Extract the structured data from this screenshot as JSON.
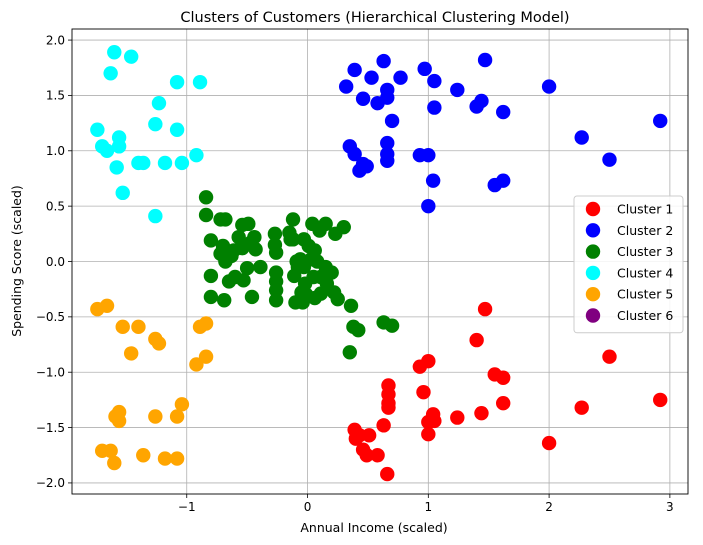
{
  "chart_data": {
    "type": "scatter",
    "title": "Clusters of Customers (Hierarchical Clustering Model)",
    "xlabel": "Annual Income (scaled)",
    "ylabel": "Spending Score (scaled)",
    "xlim": [
      -1.95,
      3.15
    ],
    "ylim": [
      -2.1,
      2.1
    ],
    "xticks": [
      -1,
      0,
      1,
      2,
      3
    ],
    "xtick_labels": [
      "−1",
      "0",
      "1",
      "2",
      "3"
    ],
    "yticks": [
      -2.0,
      -1.5,
      -1.0,
      -0.5,
      0.0,
      0.5,
      1.0,
      1.5,
      2.0
    ],
    "ytick_labels": [
      "−2.0",
      "−1.5",
      "−1.0",
      "−0.5",
      "0.0",
      "0.5",
      "1.0",
      "1.5",
      "2.0"
    ],
    "grid": true,
    "legend_position": "center-right",
    "series": [
      {
        "name": "Cluster 1",
        "color": "#ff0000",
        "points": [
          [
            0.39,
            -1.52
          ],
          [
            0.4,
            -1.6
          ],
          [
            0.43,
            -1.57
          ],
          [
            0.46,
            -1.7
          ],
          [
            0.49,
            -1.75
          ],
          [
            0.51,
            -1.57
          ],
          [
            0.58,
            -1.75
          ],
          [
            0.63,
            -1.48
          ],
          [
            0.66,
            -1.92
          ],
          [
            0.67,
            -1.12
          ],
          [
            0.67,
            -1.2
          ],
          [
            0.67,
            -1.28
          ],
          [
            0.67,
            -1.32
          ],
          [
            0.93,
            -0.95
          ],
          [
            0.96,
            -1.18
          ],
          [
            1.0,
            -0.9
          ],
          [
            1.0,
            -1.45
          ],
          [
            1.0,
            -1.56
          ],
          [
            1.04,
            -1.38
          ],
          [
            1.05,
            -1.44
          ],
          [
            1.24,
            -1.41
          ],
          [
            1.4,
            -0.71
          ],
          [
            1.44,
            -1.37
          ],
          [
            1.47,
            -0.43
          ],
          [
            1.55,
            -1.02
          ],
          [
            1.62,
            -1.05
          ],
          [
            1.62,
            -1.28
          ],
          [
            2.0,
            -1.64
          ],
          [
            2.27,
            -1.32
          ],
          [
            2.5,
            -0.86
          ],
          [
            2.92,
            -1.25
          ]
        ]
      },
      {
        "name": "Cluster 2",
        "color": "#0000ff",
        "points": [
          [
            0.32,
            1.58
          ],
          [
            0.35,
            1.04
          ],
          [
            0.39,
            1.73
          ],
          [
            0.39,
            0.97
          ],
          [
            0.43,
            0.82
          ],
          [
            0.46,
            1.47
          ],
          [
            0.46,
            0.88
          ],
          [
            0.49,
            0.86
          ],
          [
            0.53,
            1.66
          ],
          [
            0.58,
            1.43
          ],
          [
            0.63,
            1.81
          ],
          [
            0.66,
            1.48
          ],
          [
            0.66,
            1.55
          ],
          [
            0.66,
            1.07
          ],
          [
            0.66,
            0.97
          ],
          [
            0.66,
            0.91
          ],
          [
            0.7,
            1.27
          ],
          [
            0.77,
            1.66
          ],
          [
            0.93,
            0.96
          ],
          [
            0.97,
            1.74
          ],
          [
            1.0,
            0.96
          ],
          [
            1.0,
            0.5
          ],
          [
            1.04,
            0.73
          ],
          [
            1.05,
            1.63
          ],
          [
            1.05,
            1.39
          ],
          [
            1.24,
            1.55
          ],
          [
            1.4,
            1.4
          ],
          [
            1.44,
            1.45
          ],
          [
            1.47,
            1.82
          ],
          [
            1.55,
            0.69
          ],
          [
            1.62,
            1.35
          ],
          [
            1.62,
            0.73
          ],
          [
            2.0,
            1.58
          ],
          [
            2.27,
            1.12
          ],
          [
            2.5,
            0.92
          ],
          [
            2.92,
            1.27
          ]
        ]
      },
      {
        "name": "Cluster 3",
        "color": "#008000",
        "points": [
          [
            -0.84,
            0.58
          ],
          [
            -0.84,
            0.42
          ],
          [
            -0.8,
            0.19
          ],
          [
            -0.8,
            -0.13
          ],
          [
            -0.8,
            -0.32
          ],
          [
            -0.72,
            0.38
          ],
          [
            -0.72,
            0.07
          ],
          [
            -0.7,
            0.14
          ],
          [
            -0.69,
            -0.35
          ],
          [
            -0.68,
            0.38
          ],
          [
            -0.68,
            0.0
          ],
          [
            -0.65,
            -0.18
          ],
          [
            -0.63,
            0.05
          ],
          [
            -0.61,
            0.1
          ],
          [
            -0.6,
            -0.14
          ],
          [
            -0.57,
            0.22
          ],
          [
            -0.54,
            0.33
          ],
          [
            -0.54,
            0.12
          ],
          [
            -0.53,
            -0.17
          ],
          [
            -0.5,
            -0.06
          ],
          [
            -0.49,
            0.34
          ],
          [
            -0.47,
            0.17
          ],
          [
            -0.46,
            -0.32
          ],
          [
            -0.44,
            0.22
          ],
          [
            -0.43,
            0.11
          ],
          [
            -0.39,
            -0.05
          ],
          [
            -0.27,
            0.25
          ],
          [
            -0.27,
            0.15
          ],
          [
            -0.26,
            0.08
          ],
          [
            -0.26,
            -0.1
          ],
          [
            -0.26,
            -0.18
          ],
          [
            -0.26,
            -0.26
          ],
          [
            -0.26,
            -0.35
          ],
          [
            -0.15,
            0.26
          ],
          [
            -0.14,
            0.2
          ],
          [
            -0.12,
            0.38
          ],
          [
            -0.12,
            0.2
          ],
          [
            -0.11,
            -0.13
          ],
          [
            -0.1,
            -0.37
          ],
          [
            -0.09,
            0.0
          ],
          [
            -0.08,
            -0.05
          ],
          [
            -0.06,
            0.02
          ],
          [
            -0.05,
            -0.28
          ],
          [
            -0.04,
            -0.37
          ],
          [
            -0.03,
            0.2
          ],
          [
            -0.03,
            -0.05
          ],
          [
            -0.02,
            -0.2
          ],
          [
            -0.01,
            -0.3
          ],
          [
            0.01,
            0.14
          ],
          [
            0.03,
            0.02
          ],
          [
            0.04,
            0.34
          ],
          [
            0.05,
            -0.14
          ],
          [
            0.06,
            0.1
          ],
          [
            0.06,
            -0.33
          ],
          [
            0.08,
            0.0
          ],
          [
            0.1,
            0.28
          ],
          [
            0.11,
            -0.14
          ],
          [
            0.11,
            -0.29
          ],
          [
            0.15,
            0.34
          ],
          [
            0.15,
            -0.05
          ],
          [
            0.16,
            -0.2
          ],
          [
            0.2,
            -0.1
          ],
          [
            0.22,
            -0.28
          ],
          [
            0.23,
            0.25
          ],
          [
            0.25,
            -0.34
          ],
          [
            0.3,
            0.31
          ],
          [
            0.35,
            -0.82
          ],
          [
            0.36,
            -0.4
          ],
          [
            0.38,
            -0.59
          ],
          [
            0.42,
            -0.62
          ],
          [
            0.63,
            -0.55
          ],
          [
            0.7,
            -0.58
          ]
        ]
      },
      {
        "name": "Cluster 4",
        "color": "#00ffff",
        "points": [
          [
            -1.74,
            1.19
          ],
          [
            -1.7,
            1.04
          ],
          [
            -1.66,
            1.0
          ],
          [
            -1.63,
            1.7
          ],
          [
            -1.6,
            1.89
          ],
          [
            -1.58,
            0.85
          ],
          [
            -1.56,
            1.12
          ],
          [
            -1.56,
            1.04
          ],
          [
            -1.53,
            0.62
          ],
          [
            -1.46,
            1.85
          ],
          [
            -1.4,
            0.89
          ],
          [
            -1.36,
            0.89
          ],
          [
            -1.26,
            1.24
          ],
          [
            -1.26,
            0.41
          ],
          [
            -1.23,
            1.43
          ],
          [
            -1.18,
            0.89
          ],
          [
            -1.08,
            1.62
          ],
          [
            -1.08,
            1.19
          ],
          [
            -1.04,
            0.89
          ],
          [
            -0.92,
            0.96
          ],
          [
            -0.89,
            1.62
          ]
        ]
      },
      {
        "name": "Cluster 5",
        "color": "#ffa500",
        "points": [
          [
            -1.74,
            -0.43
          ],
          [
            -1.7,
            -1.71
          ],
          [
            -1.66,
            -0.4
          ],
          [
            -1.63,
            -1.71
          ],
          [
            -1.6,
            -1.82
          ],
          [
            -1.59,
            -1.4
          ],
          [
            -1.56,
            -1.44
          ],
          [
            -1.56,
            -1.36
          ],
          [
            -1.53,
            -0.59
          ],
          [
            -1.46,
            -0.83
          ],
          [
            -1.4,
            -0.59
          ],
          [
            -1.36,
            -1.75
          ],
          [
            -1.26,
            -0.7
          ],
          [
            -1.26,
            -1.4
          ],
          [
            -1.23,
            -0.74
          ],
          [
            -1.18,
            -1.78
          ],
          [
            -1.08,
            -1.78
          ],
          [
            -1.08,
            -1.4
          ],
          [
            -1.04,
            -1.29
          ],
          [
            -0.92,
            -0.93
          ],
          [
            -0.89,
            -0.59
          ],
          [
            -0.84,
            -0.56
          ],
          [
            -0.84,
            -0.86
          ]
        ]
      },
      {
        "name": "Cluster 6",
        "color": "#800080",
        "points": []
      }
    ]
  }
}
